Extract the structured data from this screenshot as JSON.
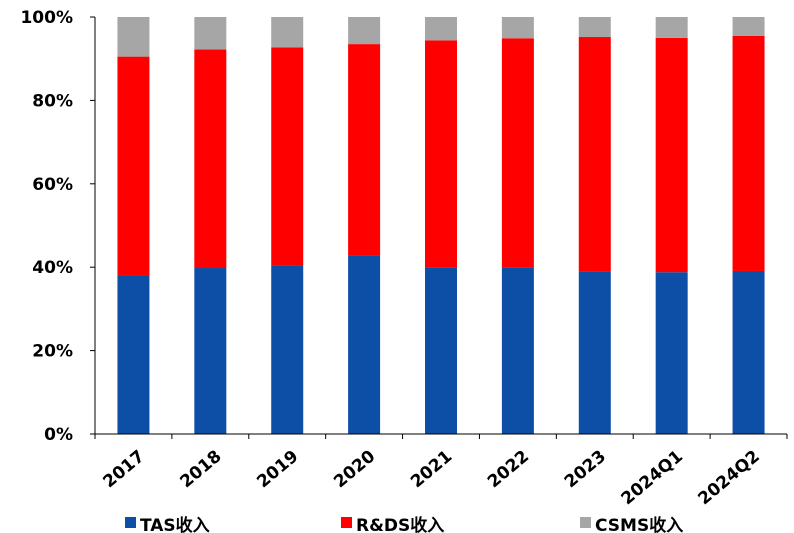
{
  "chart_data": {
    "type": "bar",
    "stacked": true,
    "percent": true,
    "title": "",
    "xlabel": "",
    "ylabel": "",
    "ylim": [
      0,
      100
    ],
    "yticks": [
      "0%",
      "20%",
      "40%",
      "60%",
      "80%",
      "100%"
    ],
    "grid": false,
    "legend_position": "bottom",
    "categories": [
      "2017",
      "2018",
      "2019",
      "2020",
      "2021",
      "2022",
      "2023",
      "2024Q1",
      "2024Q2"
    ],
    "series": [
      {
        "name": "TAS收入",
        "color": "#0D4EA6",
        "values": [
          38.0,
          39.8,
          40.5,
          42.7,
          39.9,
          39.9,
          39.0,
          38.8,
          39.1
        ]
      },
      {
        "name": "R&DS收入",
        "color": "#FF0000",
        "values": [
          52.5,
          52.4,
          52.2,
          50.8,
          54.5,
          55.0,
          56.2,
          56.2,
          56.4
        ]
      },
      {
        "name": "CSMS收入",
        "color": "#A6A6A6",
        "values": [
          9.5,
          7.8,
          7.3,
          6.5,
          5.6,
          5.1,
          4.8,
          5.0,
          4.5
        ]
      }
    ]
  }
}
